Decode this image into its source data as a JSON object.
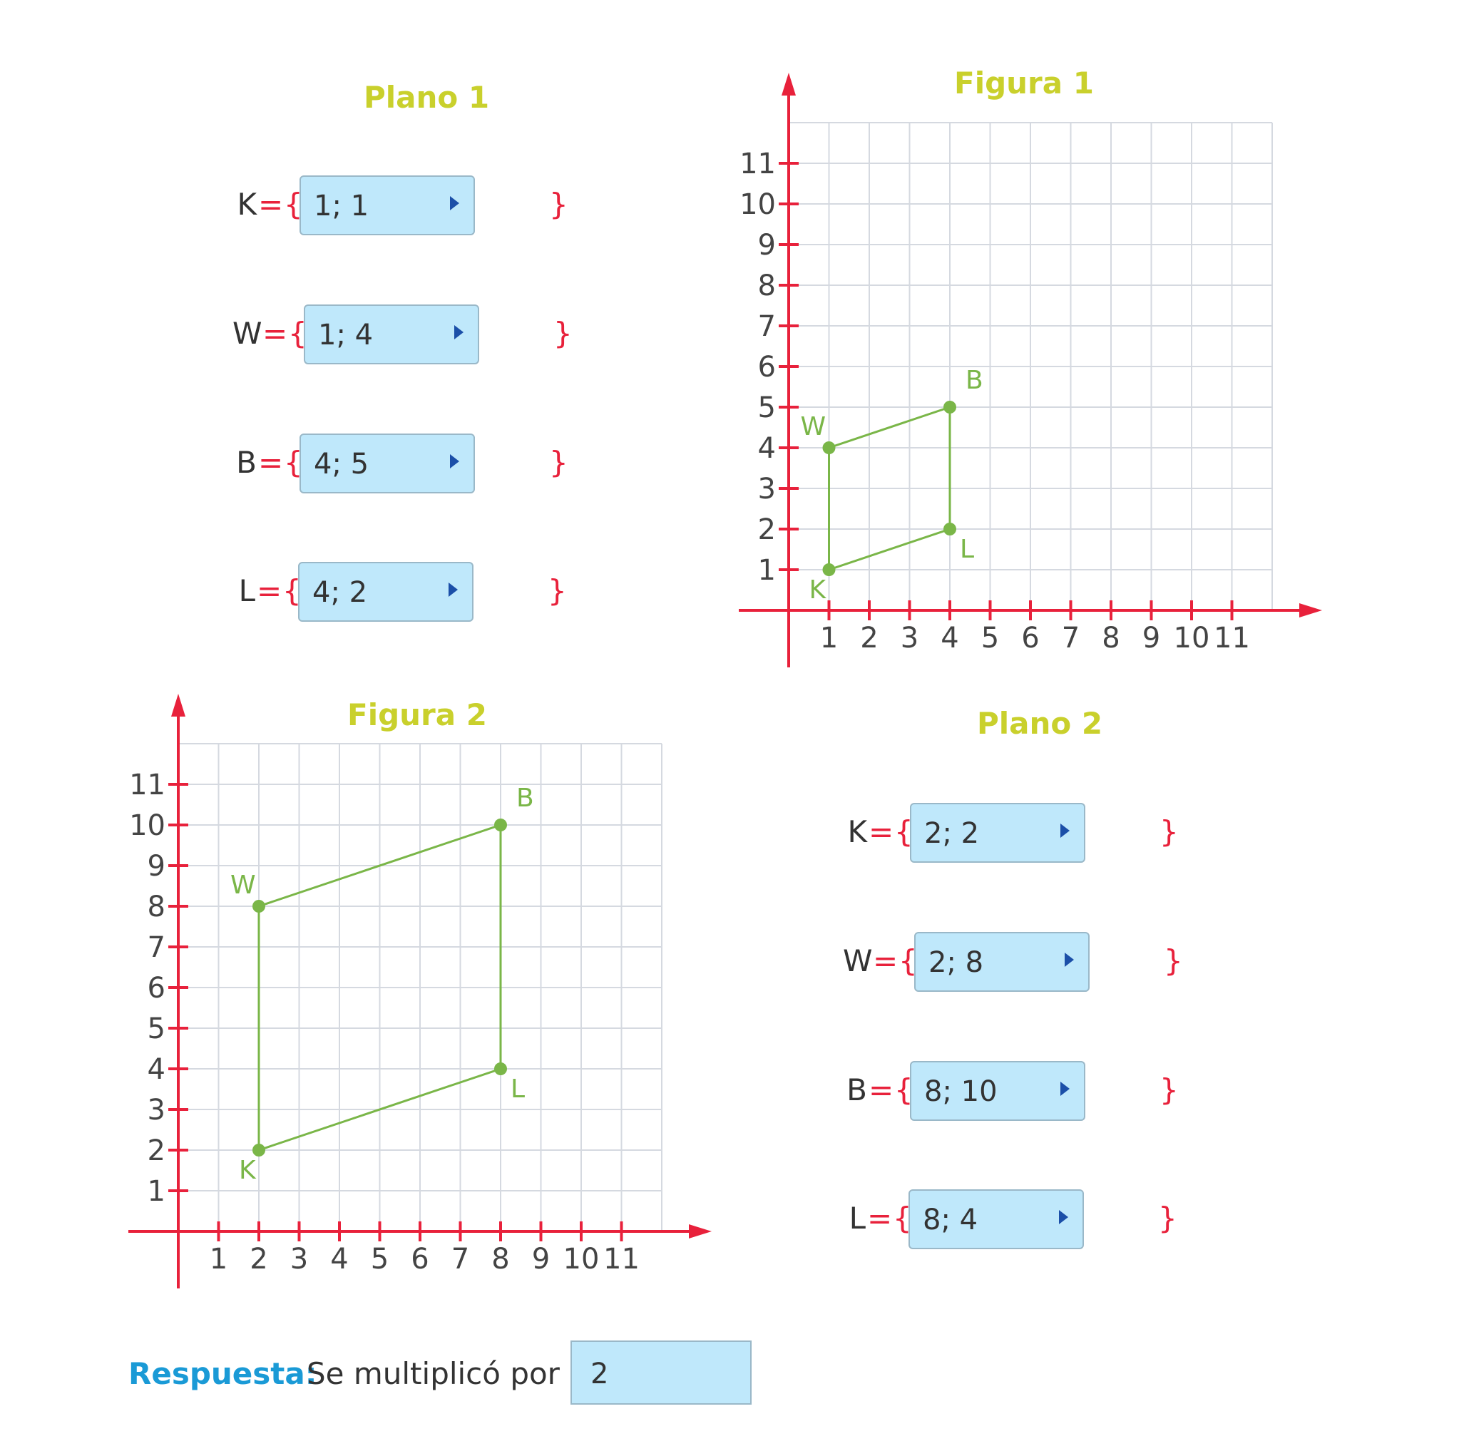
{
  "plano1": {
    "title": "Plano 1",
    "rows": [
      {
        "var": "K",
        "eq": "=",
        "lb": "{",
        "value": "1; 1",
        "rb": "}"
      },
      {
        "var": "W",
        "eq": "=",
        "lb": "{",
        "value": "1; 4",
        "rb": "}"
      },
      {
        "var": "B",
        "eq": "=",
        "lb": "{",
        "value": "4; 5",
        "rb": "}"
      },
      {
        "var": "L",
        "eq": "=",
        "lb": "{",
        "value": "4; 2",
        "rb": "}"
      }
    ]
  },
  "plano2": {
    "title": "Plano 2",
    "rows": [
      {
        "var": "K",
        "eq": "=",
        "lb": "{",
        "value": "2; 2",
        "rb": "}"
      },
      {
        "var": "W",
        "eq": "=",
        "lb": "{",
        "value": "2; 8",
        "rb": "}"
      },
      {
        "var": "B",
        "eq": "=",
        "lb": "{",
        "value": "8; 10",
        "rb": "}"
      },
      {
        "var": "L",
        "eq": "=",
        "lb": "{",
        "value": "8; 4",
        "rb": "}"
      }
    ]
  },
  "figura1": {
    "title": "Figura 1",
    "ticks": [
      "1",
      "2",
      "3",
      "4",
      "5",
      "6",
      "7",
      "8",
      "9",
      "10",
      "11"
    ],
    "points": [
      {
        "name": "K",
        "x": 1,
        "y": 1
      },
      {
        "name": "W",
        "x": 1,
        "y": 4
      },
      {
        "name": "B",
        "x": 4,
        "y": 5
      },
      {
        "name": "L",
        "x": 4,
        "y": 2
      }
    ]
  },
  "figura2": {
    "title": "Figura 2",
    "ticks": [
      "1",
      "2",
      "3",
      "4",
      "5",
      "6",
      "7",
      "8",
      "9",
      "10",
      "11"
    ],
    "points": [
      {
        "name": "K",
        "x": 2,
        "y": 2
      },
      {
        "name": "W",
        "x": 2,
        "y": 8
      },
      {
        "name": "B",
        "x": 8,
        "y": 10
      },
      {
        "name": "L",
        "x": 8,
        "y": 4
      }
    ]
  },
  "answer": {
    "label": "Respuesta:",
    "text": "Se multiplicó por",
    "value": "2"
  },
  "colors": {
    "axis": "#e8213b",
    "grid": "#d5d9e0",
    "shape": "#7ab648",
    "title": "#c9d02c",
    "field": "#bfe8fb",
    "label_blue": "#1a9ad6"
  }
}
